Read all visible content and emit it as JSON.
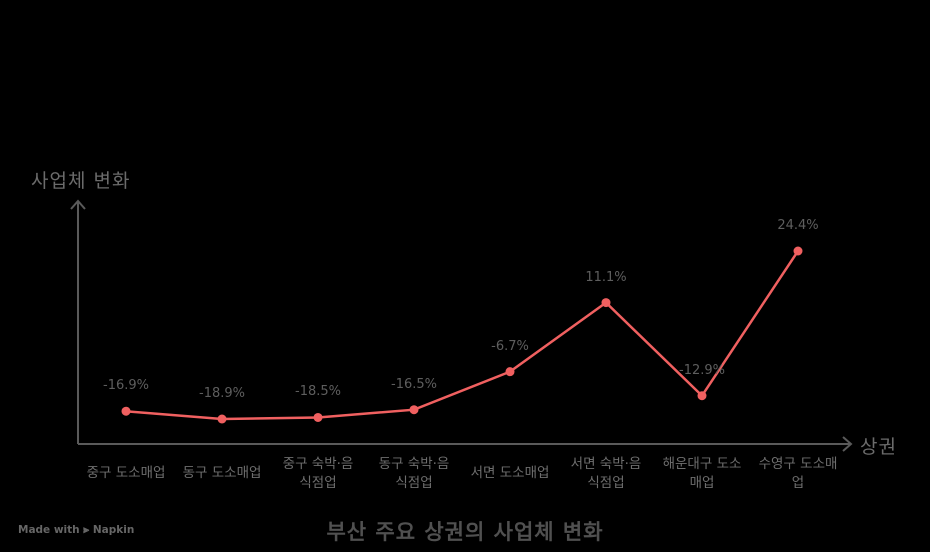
{
  "chart_data": {
    "type": "line",
    "title": "부산 주요 상권의 사업체 변화",
    "xlabel": "상권",
    "ylabel": "사업체 변화",
    "categories": [
      "중구 도소매업",
      "동구 도소매업",
      "중구 숙박·음식점업",
      "동구 숙박·음식점업",
      "서면 도소매업",
      "서면 숙박·음식점업",
      "해운대구 도소매업",
      "수영구 도소매업"
    ],
    "series": [
      {
        "name": "사업체 변화",
        "values": [
          -16.9,
          -18.9,
          -18.5,
          -16.5,
          -6.7,
          11.1,
          -12.9,
          24.4
        ],
        "color": "#f06060"
      }
    ],
    "value_labels": [
      "-16.9%",
      "-18.9%",
      "-18.5%",
      "-16.5%",
      "-6.7%",
      "11.1%",
      "-12.9%",
      "24.4%"
    ],
    "grid": false,
    "legend": "none"
  },
  "axis": {
    "ylabel": "사업체 변화",
    "xlabel": "상권",
    "color": "#5a5a5a"
  },
  "category_lines": [
    [
      "중구 도소매업",
      ""
    ],
    [
      "동구 도소매업",
      ""
    ],
    [
      "중구 숙박·음",
      "식점업"
    ],
    [
      "동구 숙박·음",
      "식점업"
    ],
    [
      "서면 도소매업",
      ""
    ],
    [
      "서면 숙박·음",
      "식점업"
    ],
    [
      "해운대구 도소",
      "매업"
    ],
    [
      "수영구 도소매",
      "업"
    ]
  ],
  "footer": {
    "title": "부산 주요 상권의 사업체 변화",
    "brand": "Made with ⫸ Napkin"
  }
}
